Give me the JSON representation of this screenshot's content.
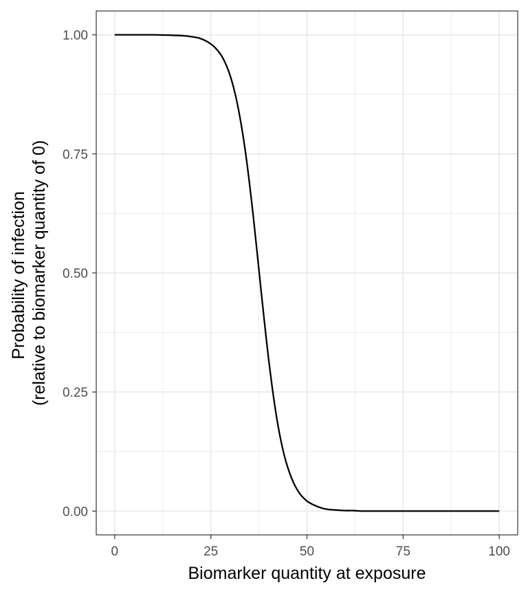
{
  "chart_data": {
    "type": "line",
    "title": "",
    "xlabel": "Biomarker quantity at exposure",
    "ylabel_lines": [
      "Probability of infection",
      "(relative to biomarker quantity of 0)"
    ],
    "xlim": [
      -4.8,
      104.8
    ],
    "ylim": [
      -0.05,
      1.05
    ],
    "x_ticks": [
      0,
      25,
      50,
      75,
      100
    ],
    "x_tick_labels": [
      "0",
      "25",
      "50",
      "75",
      "100"
    ],
    "y_ticks": [
      0,
      0.25,
      0.5,
      0.75,
      1.0
    ],
    "y_tick_labels": [
      "0.00",
      "0.25",
      "0.50",
      "0.75",
      "1.00"
    ],
    "grid": true,
    "legend": "none",
    "colors": {
      "line": "#000000",
      "grid": "#ebebeb",
      "panel_border": "#333333"
    },
    "series": [
      {
        "x": [
          0,
          5,
          10,
          15,
          18,
          20,
          22,
          24,
          26,
          28,
          30,
          32,
          34,
          36,
          38,
          40,
          42,
          44,
          46,
          48,
          50,
          52,
          54,
          56,
          58,
          60,
          62,
          64,
          66,
          68,
          70,
          75,
          80,
          90,
          100
        ],
        "y": [
          1.0,
          1.0,
          1.0,
          0.999,
          0.998,
          0.996,
          0.993,
          0.986,
          0.974,
          0.953,
          0.915,
          0.851,
          0.754,
          0.622,
          0.468,
          0.321,
          0.202,
          0.12,
          0.069,
          0.038,
          0.021,
          0.012,
          0.006,
          0.003,
          0.002,
          0.001,
          0.001,
          0.0,
          0.0,
          0.0,
          0.0,
          0.0,
          0.0,
          0.0,
          0.0
        ]
      }
    ]
  }
}
